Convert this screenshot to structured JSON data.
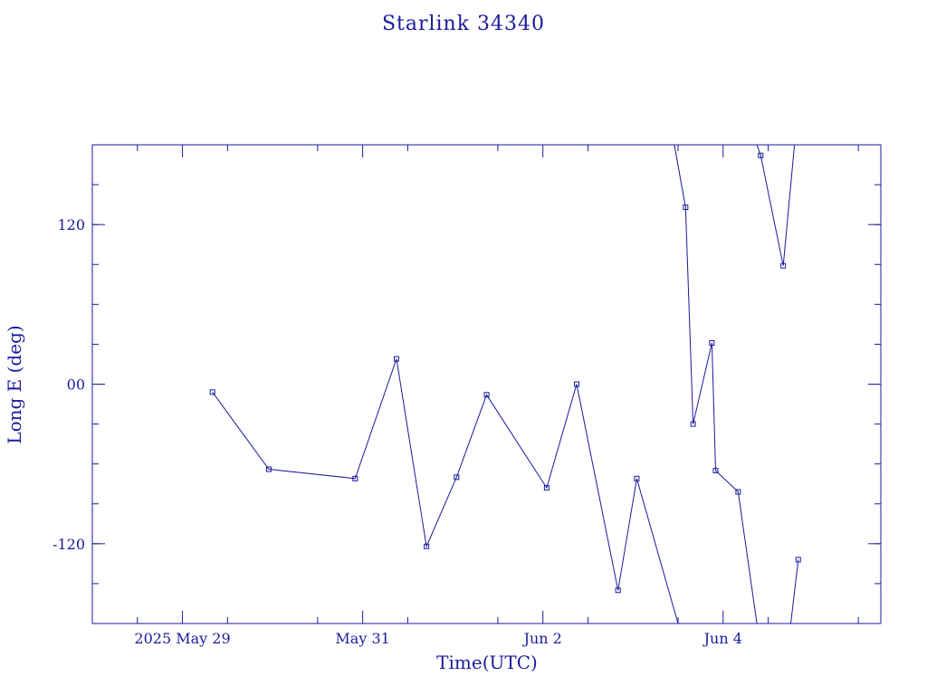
{
  "chart_data": {
    "type": "line",
    "title": "Starlink 34340",
    "xlabel": "Time(UTC)",
    "ylabel": "Long E (deg)",
    "colors": {
      "line": "#1a1a9c",
      "axis": "#1a1a9c"
    },
    "x_axis": {
      "ticks": [
        {
          "label": "2025 May 29",
          "x": "2025-05-29"
        },
        {
          "label": "May 31",
          "x": "2025-05-31"
        },
        {
          "label": "Jun  2",
          "x": "2025-06-02"
        },
        {
          "label": "Jun  4",
          "x": "2025-06-04"
        }
      ],
      "xlim": [
        "2025-05-28T00:00",
        "2025-06-05T18:00"
      ]
    },
    "y_axis": {
      "ticks": [
        {
          "label": "120",
          "value": 120
        },
        {
          "label": "00",
          "value": 0
        },
        {
          "label": "-120",
          "value": -120
        }
      ],
      "ylim": [
        -180,
        180
      ]
    },
    "grid": false,
    "segments": [
      [
        {
          "x": "2025-05-29T08:00",
          "y": -6
        },
        {
          "x": "2025-05-29T23:00",
          "y": -64
        },
        {
          "x": "2025-05-30T22:00",
          "y": -71
        },
        {
          "x": "2025-05-31T09:00",
          "y": 19
        },
        {
          "x": "2025-05-31T17:00",
          "y": -122
        },
        {
          "x": "2025-06-01T01:00",
          "y": -70
        },
        {
          "x": "2025-06-01T09:00",
          "y": -8
        },
        {
          "x": "2025-06-02T01:00",
          "y": -78
        },
        {
          "x": "2025-06-02T09:00",
          "y": 0
        },
        {
          "x": "2025-06-02T20:00",
          "y": -155
        },
        {
          "x": "2025-06-03T01:00",
          "y": -71
        },
        {
          "x": "2025-06-03T12:00",
          "y": -180
        }
      ],
      [
        {
          "x": "2025-06-03T11:00",
          "y": 180
        },
        {
          "x": "2025-06-03T14:00",
          "y": 133
        },
        {
          "x": "2025-06-03T16:00",
          "y": -30
        },
        {
          "x": "2025-06-03T21:00",
          "y": 31
        },
        {
          "x": "2025-06-03T22:00",
          "y": -65
        },
        {
          "x": "2025-06-04T04:00",
          "y": -81
        },
        {
          "x": "2025-06-04T09:00",
          "y": -180
        }
      ],
      [
        {
          "x": "2025-06-04T09:00",
          "y": 180
        },
        {
          "x": "2025-06-04T10:00",
          "y": 172
        },
        {
          "x": "2025-06-04T16:00",
          "y": 89
        },
        {
          "x": "2025-06-04T19:00",
          "y": 180
        }
      ],
      [
        {
          "x": "2025-06-04T18:00",
          "y": -180
        },
        {
          "x": "2025-06-04T20:00",
          "y": -132
        }
      ]
    ],
    "markers": [
      {
        "x": "2025-05-29T08:00",
        "y": -6
      },
      {
        "x": "2025-05-29T23:00",
        "y": -64
      },
      {
        "x": "2025-05-30T22:00",
        "y": -71
      },
      {
        "x": "2025-05-31T09:00",
        "y": 19
      },
      {
        "x": "2025-05-31T17:00",
        "y": -122
      },
      {
        "x": "2025-06-01T01:00",
        "y": -70
      },
      {
        "x": "2025-06-01T09:00",
        "y": -8
      },
      {
        "x": "2025-06-02T01:00",
        "y": -78
      },
      {
        "x": "2025-06-02T09:00",
        "y": 0
      },
      {
        "x": "2025-06-02T20:00",
        "y": -155
      },
      {
        "x": "2025-06-03T01:00",
        "y": -71
      },
      {
        "x": "2025-06-03T14:00",
        "y": 133
      },
      {
        "x": "2025-06-03T16:00",
        "y": -30
      },
      {
        "x": "2025-06-03T21:00",
        "y": 31
      },
      {
        "x": "2025-06-03T22:00",
        "y": -65
      },
      {
        "x": "2025-06-04T04:00",
        "y": -81
      },
      {
        "x": "2025-06-04T10:00",
        "y": 172
      },
      {
        "x": "2025-06-04T16:00",
        "y": 89
      },
      {
        "x": "2025-06-04T20:00",
        "y": -132
      }
    ]
  }
}
